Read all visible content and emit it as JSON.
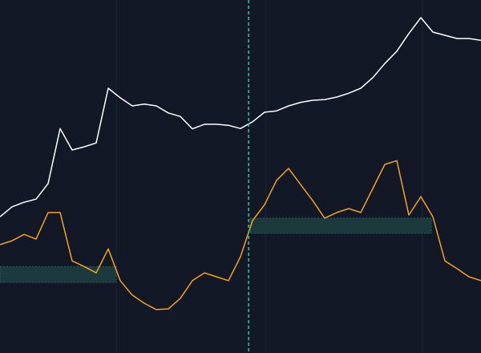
{
  "chart_data": {
    "type": "line",
    "background": "#121826",
    "xlim": [
      0,
      100
    ],
    "ylim": [
      0,
      100
    ],
    "xgrid": [
      24.2,
      55.3,
      87.8
    ],
    "grid_color": "#1e2534",
    "x": [
      0,
      2.5,
      5,
      7.5,
      10,
      12.5,
      15,
      17.5,
      20,
      22.5,
      25,
      27.5,
      30,
      32.5,
      35,
      37.5,
      40,
      42.5,
      45,
      47.5,
      50,
      52.5,
      55,
      57.5,
      60,
      62.5,
      65,
      67.5,
      70,
      72.5,
      75,
      77.5,
      80,
      82.5,
      85,
      87.5,
      90,
      92.5,
      95,
      97.5,
      100
    ],
    "series": [
      {
        "color": "#ffffff",
        "values": [
          38.6,
          41.4,
          42.7,
          43.6,
          48,
          63.6,
          57.5,
          58.4,
          59.5,
          75,
          72.3,
          70,
          70.5,
          70,
          68,
          67,
          63.5,
          64.8,
          64.8,
          64.5,
          63.6,
          65.5,
          68.2,
          68.6,
          70,
          71,
          71.6,
          71.8,
          72.5,
          73.6,
          75,
          78,
          82,
          85.5,
          90.5,
          95,
          90.9,
          90,
          89.1,
          89.1,
          88.6
        ]
      },
      {
        "color": "#f5a31a",
        "values": [
          30.7,
          31.8,
          33.6,
          32.3,
          39.8,
          39.8,
          26.1,
          24.5,
          22.7,
          29.5,
          20.5,
          16.4,
          14.1,
          12.3,
          12.5,
          15.5,
          20.5,
          22.7,
          21.6,
          20.5,
          27.3,
          37.5,
          42,
          48.9,
          52.3,
          47.7,
          43.2,
          38.2,
          39.8,
          40.9,
          39.8,
          46.6,
          53.4,
          54.5,
          39.1,
          44.3,
          38.6,
          26.1,
          23.9,
          21.6,
          20.5
        ]
      }
    ],
    "bands": [
      {
        "x": [
          0,
          24.2
        ],
        "y": [
          20,
          24.5
        ],
        "color": "#1c3a3d"
      },
      {
        "x": [
          52,
          89.7
        ],
        "y": [
          33.9,
          38.2
        ],
        "color": "#1c3a3d"
      }
    ],
    "vline": {
      "x": 51.7,
      "color": "#26c6b0"
    }
  }
}
